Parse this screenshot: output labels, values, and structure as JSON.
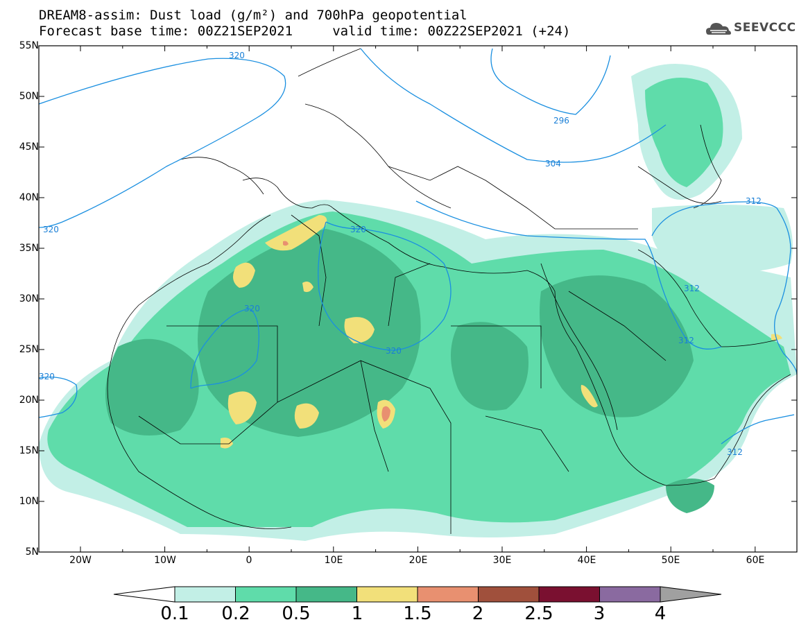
{
  "title_line1": "DREAM8-assim: Dust load (g/m²) and 700hPa geopotential",
  "title_line2": "Forecast base time: 00Z21SEP2021     valid time: 00Z22SEP2021 (+24)",
  "logo_text": "SEEVCCC",
  "lat_labels": [
    "55N",
    "50N",
    "45N",
    "40N",
    "35N",
    "30N",
    "25N",
    "20N",
    "15N",
    "10N",
    "5N"
  ],
  "lon_labels": [
    "20W",
    "10W",
    "0",
    "10E",
    "20E",
    "30E",
    "40E",
    "50E",
    "60E"
  ],
  "colorbar": {
    "labels": [
      "0.1",
      "0.2",
      "0.5",
      "1",
      "1.5",
      "2",
      "2.5",
      "3",
      "4"
    ],
    "colors": [
      "#c2efe6",
      "#5fdcaa",
      "#45b888",
      "#f2e07a",
      "#e89070",
      "#a0503c",
      "#7a1030",
      "#8a6aa0",
      "#a0a0a0"
    ],
    "under_color": "#ffffff"
  },
  "contour_labels": [
    {
      "text": "320"
    },
    {
      "text": "320"
    },
    {
      "text": "320"
    },
    {
      "text": "320"
    },
    {
      "text": "320"
    },
    {
      "text": "320"
    },
    {
      "text": "296"
    },
    {
      "text": "304"
    },
    {
      "text": "312"
    },
    {
      "text": "312"
    },
    {
      "text": "312"
    },
    {
      "text": "312"
    }
  ],
  "line_color": "#1a8fe0"
}
